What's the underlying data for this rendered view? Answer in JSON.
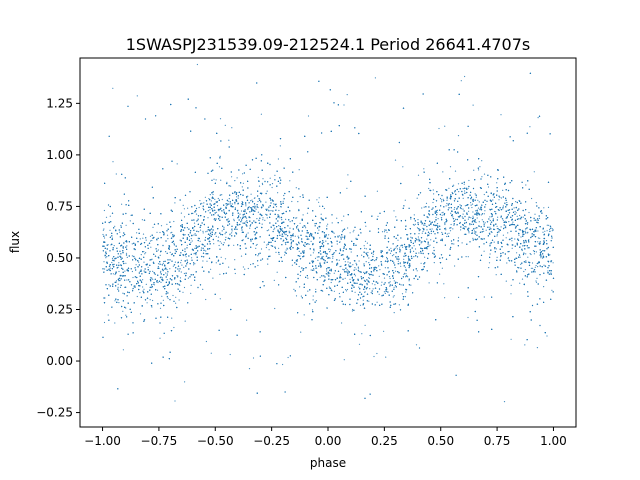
{
  "chart_data": {
    "type": "scatter",
    "title": "1SWASPJ231539.09-212524.1 Period 26641.4707s",
    "xlabel": "phase",
    "ylabel": "flux",
    "xlim": [
      -1.1,
      1.1
    ],
    "ylim": [
      -0.32,
      1.47
    ],
    "x_ticks": [
      -1.0,
      -0.75,
      -0.5,
      -0.25,
      0.0,
      0.25,
      0.5,
      0.75,
      1.0
    ],
    "x_tick_labels": [
      "−1.00",
      "−0.75",
      "−0.50",
      "−0.25",
      "0.00",
      "0.25",
      "0.50",
      "0.75",
      "1.00"
    ],
    "y_ticks": [
      -0.25,
      0.0,
      0.25,
      0.5,
      0.75,
      1.0,
      1.25
    ],
    "y_tick_labels": [
      "−0.25",
      "0.00",
      "0.25",
      "0.50",
      "0.75",
      "1.00",
      "1.25"
    ],
    "grid": false,
    "marker_color": "#1f77b4",
    "series": [
      {
        "x_range": [
          -1.0,
          1.0
        ],
        "trend": {
          "phase": [
            -1.0,
            -0.9,
            -0.8,
            -0.7,
            -0.6,
            -0.5,
            -0.4,
            -0.3,
            -0.2,
            -0.1,
            0.0,
            0.1,
            0.2,
            0.3,
            0.4,
            0.5,
            0.6,
            0.7,
            0.8,
            0.9,
            1.0
          ],
          "flux": [
            0.49,
            0.46,
            0.44,
            0.48,
            0.58,
            0.68,
            0.72,
            0.7,
            0.65,
            0.57,
            0.5,
            0.46,
            0.44,
            0.48,
            0.58,
            0.68,
            0.72,
            0.7,
            0.65,
            0.57,
            0.5
          ]
        },
        "typical_scatter": 0.1
      }
    ]
  }
}
